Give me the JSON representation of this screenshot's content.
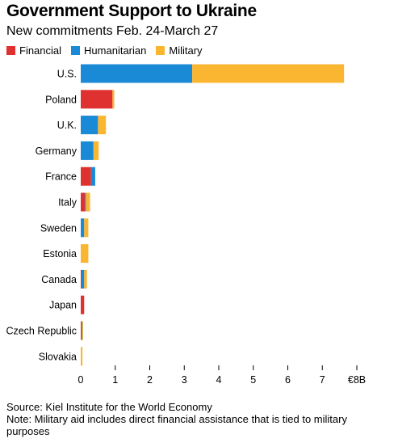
{
  "header": {
    "title": "Government Support to Ukraine",
    "subtitle": "New commitments Feb. 24-March 27"
  },
  "legend": [
    {
      "label": "Financial",
      "color": "#e03131"
    },
    {
      "label": "Humanitarian",
      "color": "#1b8ad6"
    },
    {
      "label": "Military",
      "color": "#fbb631"
    }
  ],
  "footer": {
    "source": "Source: Kiel Institute for the World Economy",
    "note": "Note: Military aid includes direct financial assistance that is tied to military purposes"
  },
  "chart_data": {
    "type": "bar",
    "orientation": "horizontal",
    "stacked": true,
    "title": "Government Support to Ukraine",
    "subtitle": "New commitments Feb. 24-March 27",
    "categories": [
      "U.S.",
      "Poland",
      "U.K.",
      "Germany",
      "France",
      "Italy",
      "Sweden",
      "Estonia",
      "Canada",
      "Japan",
      "Czech Republic",
      "Slovakia"
    ],
    "series": [
      {
        "name": "Financial",
        "color": "#e03131",
        "values": [
          0,
          0.92,
          0,
          0,
          0.3,
          0.12,
          0,
          0,
          0.02,
          0.1,
          0.02,
          0
        ]
      },
      {
        "name": "Humanitarian",
        "color": "#1b8ad6",
        "values": [
          3.23,
          0,
          0.5,
          0.37,
          0.12,
          0.03,
          0.1,
          0,
          0.08,
          0,
          0.02,
          0
        ]
      },
      {
        "name": "Military",
        "color": "#fbb631",
        "values": [
          4.4,
          0.05,
          0.23,
          0.15,
          0,
          0.12,
          0.12,
          0.22,
          0.08,
          0,
          0.03,
          0.05
        ]
      }
    ],
    "xlim": [
      0,
      8
    ],
    "x_ticks": [
      "0",
      "1",
      "2",
      "3",
      "4",
      "5",
      "6",
      "7",
      "€8B"
    ],
    "x_tick_values": [
      0,
      1,
      2,
      3,
      4,
      5,
      6,
      7,
      8
    ],
    "xlabel": "",
    "ylabel": "",
    "legend_position": "top-left",
    "grid": false
  }
}
